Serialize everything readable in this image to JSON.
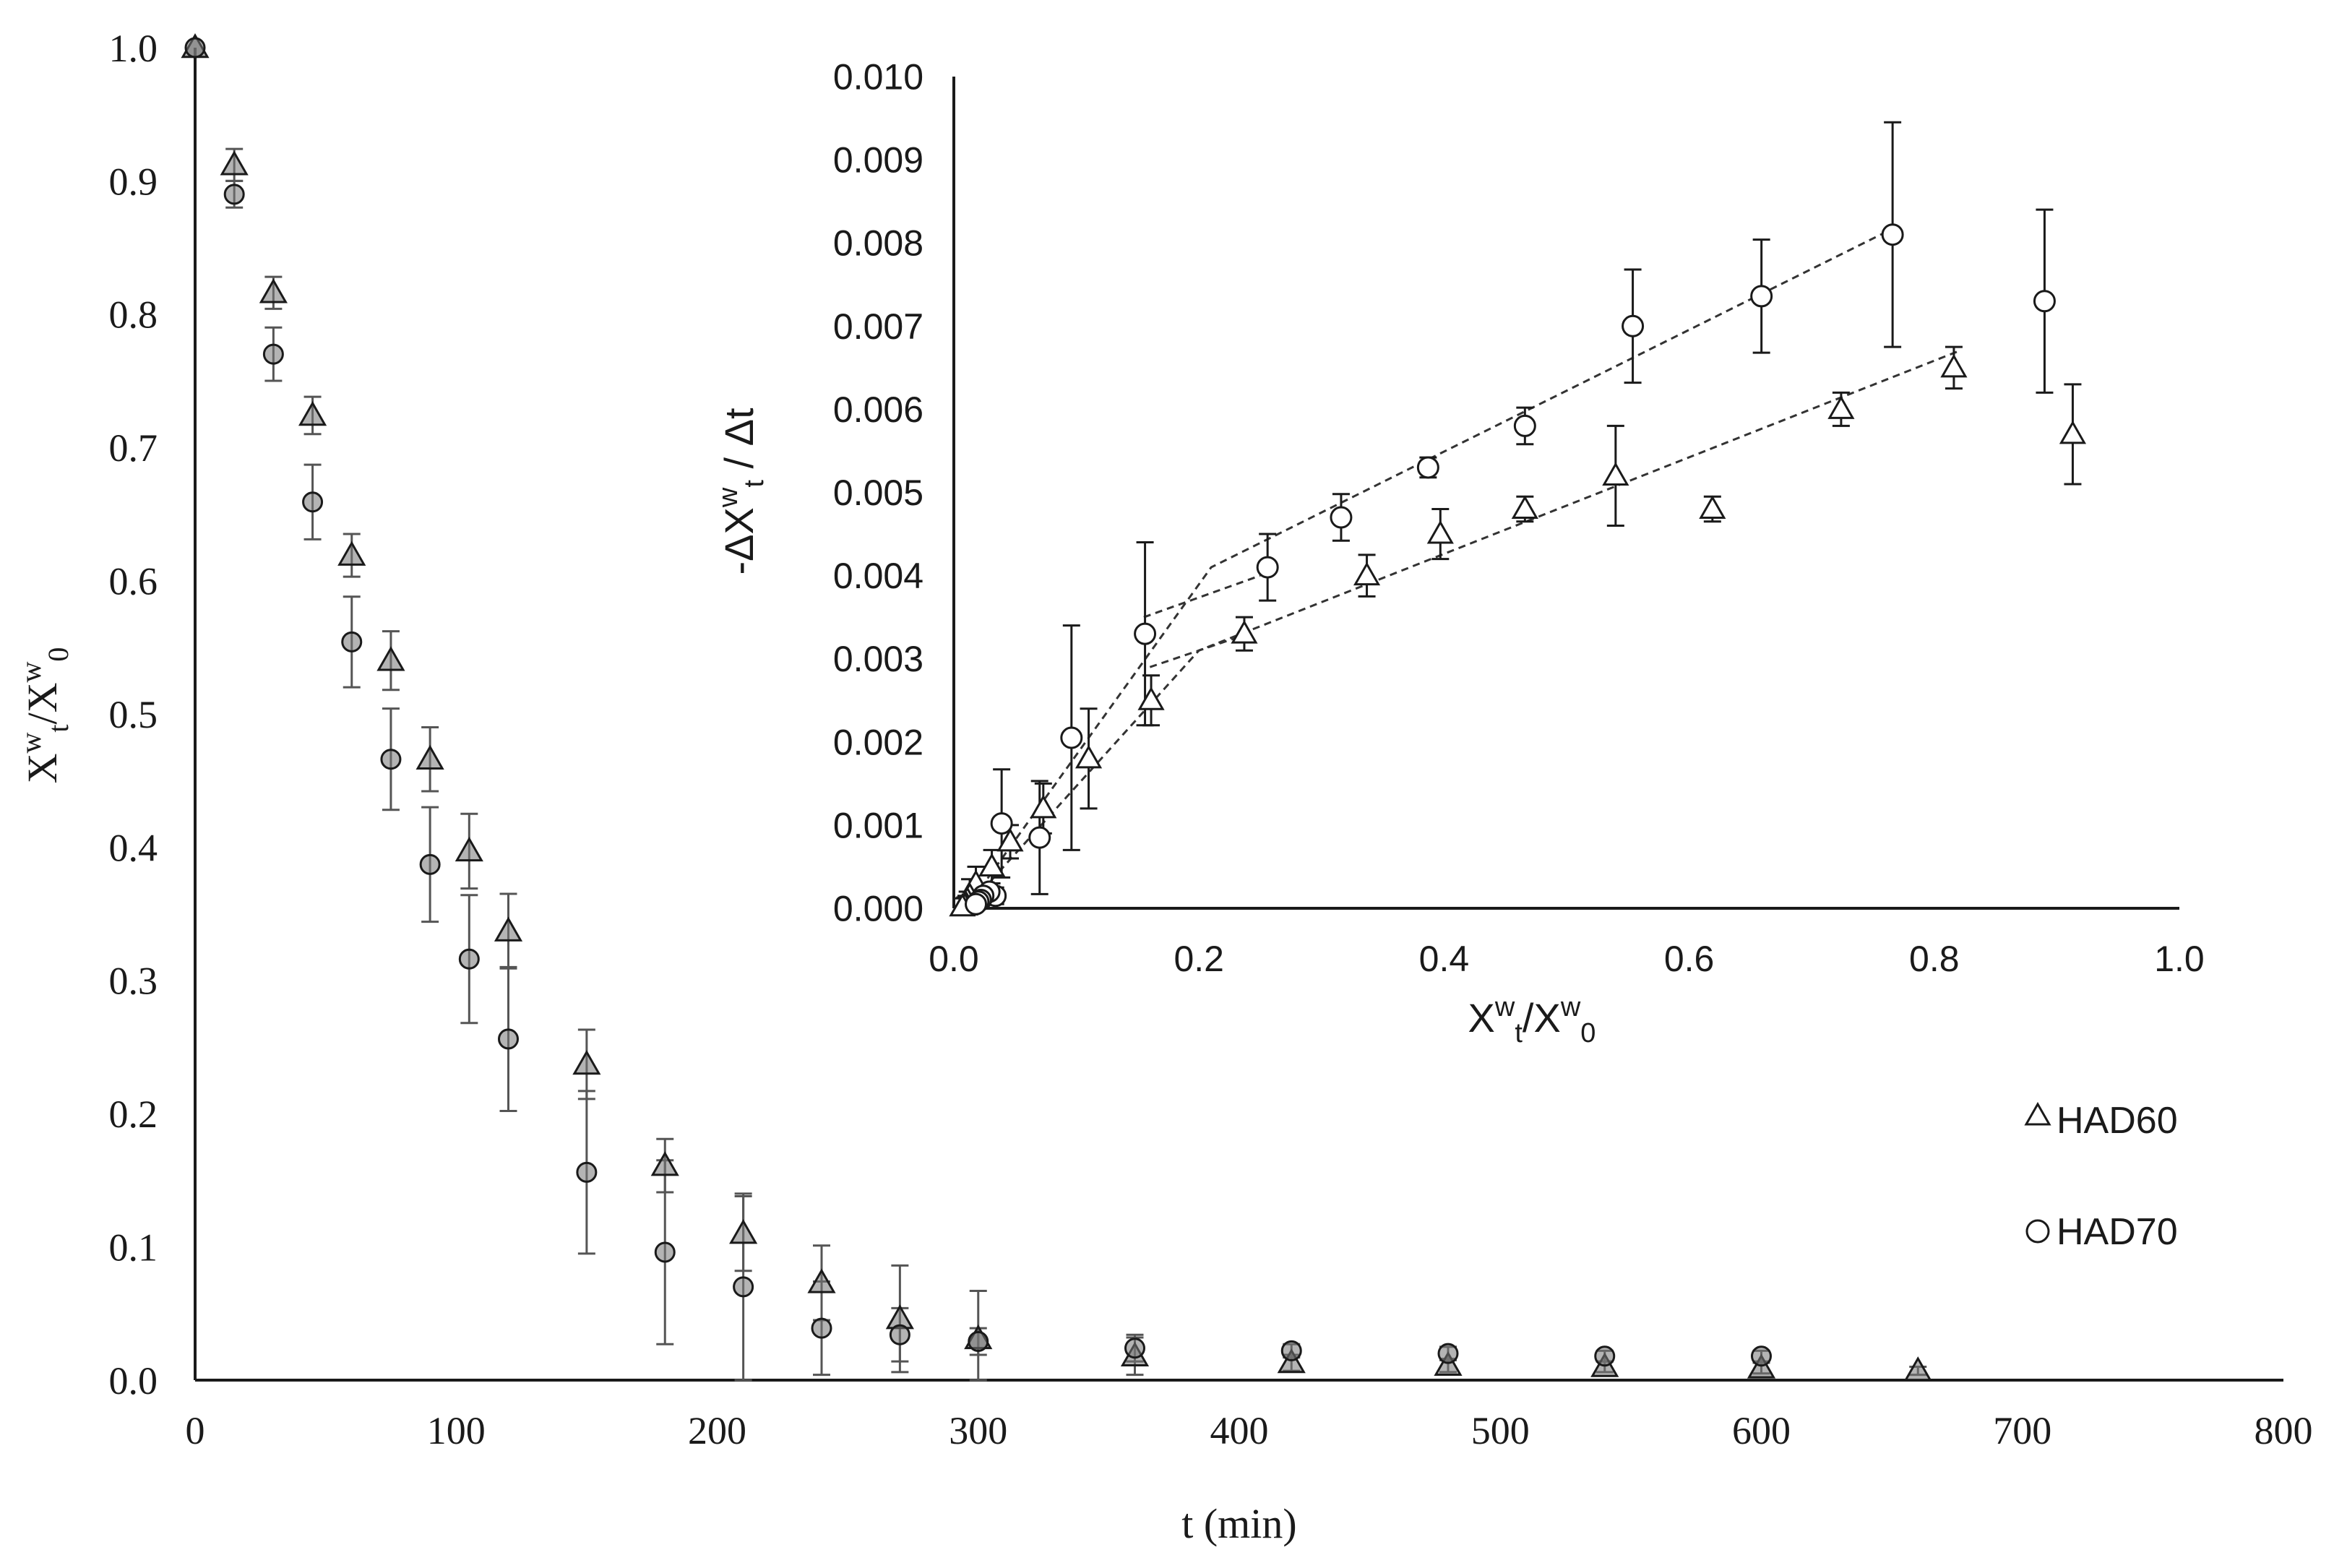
{
  "chart_data": [
    {
      "id": "main",
      "type": "scatter",
      "title": "",
      "xlabel": "t (min)",
      "ylabel": {
        "base": "X",
        "sup1": "w",
        "sub1": "t",
        "mid": "/X",
        "sup2": "w",
        "sub2": "0"
      },
      "xlim": [
        0,
        800
      ],
      "ylim": [
        0,
        1.0
      ],
      "x_ticks": [
        "0",
        "100",
        "200",
        "300",
        "400",
        "500",
        "600",
        "700",
        "800"
      ],
      "y_ticks": [
        "0.0",
        "0.1",
        "0.2",
        "0.3",
        "0.4",
        "0.5",
        "0.6",
        "0.7",
        "0.8",
        "0.9",
        "1.0"
      ],
      "grid": false,
      "series": [
        {
          "name": "HAD60",
          "marker": "triangle",
          "x": [
            0,
            15,
            30,
            45,
            60,
            75,
            90,
            105,
            120,
            150,
            180,
            210,
            240,
            270,
            300,
            360,
            420,
            480,
            540,
            600,
            660
          ],
          "y": [
            1.0,
            0.912,
            0.816,
            0.724,
            0.619,
            0.54,
            0.466,
            0.397,
            0.337,
            0.237,
            0.161,
            0.11,
            0.073,
            0.046,
            0.031,
            0.018,
            0.013,
            0.011,
            0.01,
            0.009,
            0.007
          ],
          "err": [
            0,
            0.012,
            0.012,
            0.014,
            0.016,
            0.022,
            0.024,
            0.028,
            0.028,
            0.026,
            0.02,
            0.028,
            0.028,
            0.04,
            0.036,
            0.014,
            0.006,
            0.005,
            0.004,
            0.004,
            0.003
          ]
        },
        {
          "name": "HAD70",
          "marker": "circle",
          "x": [
            0,
            15,
            30,
            45,
            60,
            75,
            90,
            105,
            120,
            150,
            180,
            210,
            240,
            270,
            300,
            360,
            420,
            480,
            540,
            600
          ],
          "y": [
            1.0,
            0.89,
            0.77,
            0.659,
            0.554,
            0.466,
            0.387,
            0.316,
            0.256,
            0.156,
            0.096,
            0.07,
            0.039,
            0.034,
            0.029,
            0.024,
            0.022,
            0.02,
            0.018,
            0.018
          ],
          "err": [
            0,
            0.01,
            0.02,
            0.028,
            0.034,
            0.038,
            0.043,
            0.048,
            0.054,
            0.061,
            0.069,
            0.07,
            0.035,
            0.02,
            0.01,
            0.01,
            0.005,
            0.005,
            0.004,
            0.004
          ]
        }
      ]
    },
    {
      "id": "inset",
      "type": "scatter",
      "title": "",
      "xlabel": {
        "base": "X",
        "sup1": "w",
        "sub1": "t",
        "mid": "/X",
        "sup2": "w",
        "sub2": "0"
      },
      "ylabel": {
        "pre": "-ΔX",
        "sup1": "w",
        "sub1": "t",
        "post": " / Δt"
      },
      "xlim": [
        0,
        1.0
      ],
      "ylim": [
        0,
        0.01
      ],
      "x_ticks": [
        "0.0",
        "0.2",
        "0.4",
        "0.6",
        "0.8",
        "1.0"
      ],
      "y_ticks": [
        "0.000",
        "0.001",
        "0.002",
        "0.003",
        "0.004",
        "0.005",
        "0.006",
        "0.007",
        "0.008",
        "0.009",
        "0.010"
      ],
      "grid": false,
      "series": [
        {
          "name": "HAD60",
          "marker": "triangle",
          "x": [
            0.913,
            0.816,
            0.724,
            0.619,
            0.54,
            0.466,
            0.397,
            0.337,
            0.237,
            0.161,
            0.11,
            0.073,
            0.046,
            0.031,
            0.018,
            0.013,
            0.011,
            0.01,
            0.009,
            0.007
          ],
          "y": [
            0.0057,
            0.0065,
            0.006,
            0.0048,
            0.0052,
            0.0048,
            0.0045,
            0.004,
            0.0033,
            0.0025,
            0.0018,
            0.0012,
            0.0008,
            0.0005,
            0.0003,
            0.00015,
            0.0001,
            5e-05,
            3e-05,
            2e-05
          ],
          "err": [
            0.0006,
            0.00025,
            0.0002,
            0.00015,
            0.0006,
            0.00015,
            0.0003,
            0.00025,
            0.0002,
            0.0003,
            0.0006,
            0.0003,
            0.0002,
            0.0002,
            0.0002,
            0.0002,
            0.0001,
            0.0001,
            0.0001,
            0.0001
          ]
        },
        {
          "name": "HAD70",
          "marker": "circle",
          "x": [
            0.89,
            0.766,
            0.659,
            0.554,
            0.466,
            0.387,
            0.316,
            0.256,
            0.156,
            0.096,
            0.07,
            0.039,
            0.034,
            0.029,
            0.024,
            0.022,
            0.02,
            0.018
          ],
          "y": [
            0.0073,
            0.0081,
            0.00736,
            0.007,
            0.0058,
            0.0053,
            0.0047,
            0.0041,
            0.0033,
            0.00205,
            0.00085,
            0.00102,
            0.00015,
            0.0002,
            0.00015,
            0.0001,
            8e-05,
            5e-05
          ],
          "err": [
            0.0011,
            0.00135,
            0.00068,
            0.00068,
            0.00022,
            0.00012,
            0.00028,
            0.0004,
            0.0011,
            0.00135,
            0.00068,
            0.00065,
            0.0001,
            0.0001,
            0.0001,
            0.0001,
            0.0001,
            0.0001
          ]
        }
      ],
      "fit_lines": [
        {
          "series": "HAD60",
          "x": [
            0.01,
            0.2,
            0.82
          ],
          "y": [
            0.0,
            0.0031,
            0.0067
          ]
        },
        {
          "series": "HAD60",
          "x": [
            0.16,
            0.24
          ],
          "y": [
            0.0029,
            0.0033
          ]
        },
        {
          "series": "HAD70",
          "x": [
            0.01,
            0.21,
            0.77
          ],
          "y": [
            0.0,
            0.0041,
            0.0082
          ]
        },
        {
          "series": "HAD70",
          "x": [
            0.155,
            0.25
          ],
          "y": [
            0.0035,
            0.004
          ]
        }
      ]
    }
  ],
  "legend": {
    "placement": "right",
    "entries": [
      {
        "label": "HAD60",
        "marker": "triangle"
      },
      {
        "label": "HAD70",
        "marker": "circle"
      }
    ]
  }
}
